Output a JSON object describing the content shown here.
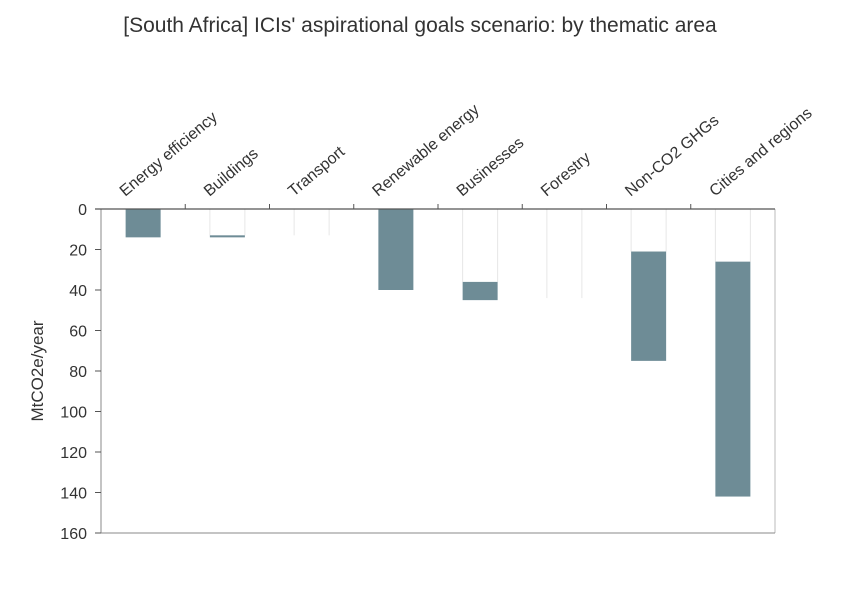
{
  "chart_data": {
    "type": "bar",
    "title": "[South Africa] ICIs' aspirational goals scenario: by thematic area",
    "ylabel": "MtCO2e/year",
    "xlabel": "",
    "ylim": [
      0,
      160
    ],
    "y_inverted": true,
    "y_ticks": [
      "0",
      "20",
      "40",
      "60",
      "80",
      "100",
      "120",
      "140",
      "160"
    ],
    "categories": [
      "Energy efficiency",
      "Buildings",
      "Transport",
      "Renewable energy",
      "Businesses",
      "Forestry",
      "Non-CO2 GHGs",
      "Cities and regions"
    ],
    "series": [
      {
        "type": "waterfall",
        "start": [
          0,
          13,
          13,
          0,
          36,
          44,
          21,
          26
        ],
        "end": [
          14,
          14,
          13,
          40,
          45,
          44,
          75,
          142
        ]
      }
    ],
    "colors": {
      "bar": "#6e8c96",
      "connector": "#e6e6e6",
      "axis": "#555555"
    }
  }
}
